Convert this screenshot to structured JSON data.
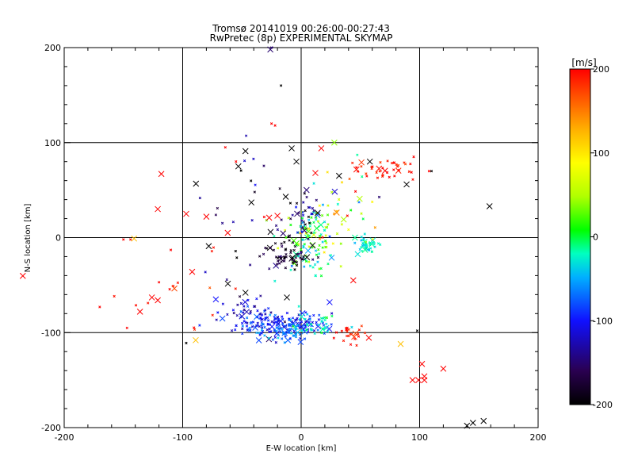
{
  "chart_data": {
    "type": "scatter",
    "title": "Tromsø 20141019 00:26:00-00:27:43",
    "subtitle": "RwPretec (8p) EXPERIMENTAL SKYMAP",
    "xlabel": "E-W location [km]",
    "ylabel": "N-S location [km]",
    "xlim": [
      -200,
      200
    ],
    "ylim": [
      -200,
      200
    ],
    "xticks": [
      "-200",
      "-100",
      "0",
      "100",
      "200"
    ],
    "yticks": [
      "-200",
      "-100",
      "0",
      "100",
      "200"
    ],
    "grid_lines": [
      -100,
      0,
      100
    ],
    "colorbar": {
      "label": "[m/s]",
      "range": [
        -200,
        200
      ],
      "ticks": [
        "-200",
        "-100",
        "0",
        "100",
        "200"
      ],
      "colormap": [
        "#000000",
        "#2a0050",
        "#1010ff",
        "#00b0ff",
        "#00ffc0",
        "#00ff00",
        "#b0ff00",
        "#ffff00",
        "#ffb000",
        "#ff5000",
        "#ff0000"
      ]
    },
    "markers": {
      "cross": "detections with large markers",
      "dot": "detections with small markers"
    },
    "clusters": [
      {
        "cx": -15,
        "cy": -92,
        "sx": 20,
        "sy": 7,
        "n": 170,
        "v": -95,
        "dv": 20
      },
      {
        "cx": -45,
        "cy": -80,
        "sx": 12,
        "sy": 8,
        "n": 40,
        "v": -120,
        "dv": 20
      },
      {
        "cx": -15,
        "cy": -100,
        "sx": 10,
        "sy": 5,
        "n": 30,
        "v": -55,
        "dv": 15
      },
      {
        "cx": 10,
        "cy": -92,
        "sx": 10,
        "sy": 6,
        "n": 30,
        "v": -25,
        "dv": 20
      },
      {
        "cx": 5,
        "cy": 0,
        "sx": 12,
        "sy": 18,
        "n": 110,
        "v": 10,
        "dv": 40
      },
      {
        "cx": -10,
        "cy": -20,
        "sx": 12,
        "sy": 8,
        "n": 60,
        "v": -180,
        "dv": 20
      },
      {
        "cx": 0,
        "cy": 25,
        "sx": 8,
        "sy": 14,
        "n": 40,
        "v": -150,
        "dv": 40
      },
      {
        "cx": 55,
        "cy": -8,
        "sx": 5,
        "sy": 5,
        "n": 40,
        "v": -35,
        "dv": 12
      },
      {
        "cx": 70,
        "cy": 72,
        "sx": 12,
        "sy": 5,
        "n": 40,
        "v": 190,
        "dv": 10
      },
      {
        "cx": 40,
        "cy": -100,
        "sx": 8,
        "sy": 6,
        "n": 25,
        "v": 190,
        "dv": 10
      },
      {
        "cx": 35,
        "cy": 30,
        "sx": 15,
        "sy": 25,
        "n": 35,
        "v": 60,
        "dv": 80
      },
      {
        "cx": -50,
        "cy": 40,
        "sx": 20,
        "sy": 40,
        "n": 25,
        "v": -160,
        "dv": 40
      },
      {
        "cx": -100,
        "cy": -60,
        "sx": 45,
        "sy": 50,
        "n": 18,
        "v": 190,
        "dv": 10
      }
    ],
    "large_crosses": [
      [
        -118,
        67,
        200
      ],
      [
        -121,
        30,
        200
      ],
      [
        -97,
        25,
        200
      ],
      [
        -80,
        22,
        200
      ],
      [
        -62,
        5,
        200
      ],
      [
        -92,
        -36,
        200
      ],
      [
        -78,
        -9,
        -200
      ],
      [
        -47,
        91,
        -200
      ],
      [
        -53,
        75,
        -200
      ],
      [
        -42,
        37,
        -200
      ],
      [
        -13,
        43,
        -200
      ],
      [
        -8,
        94,
        -200
      ],
      [
        -4,
        80,
        -200
      ],
      [
        14,
        26,
        -200
      ],
      [
        32,
        65,
        -200
      ],
      [
        58,
        80,
        -200
      ],
      [
        89,
        56,
        -200
      ],
      [
        159,
        33,
        -200
      ],
      [
        -47,
        -58,
        -200
      ],
      [
        -12,
        -63,
        -200
      ],
      [
        -27,
        21,
        200
      ],
      [
        -20,
        23,
        200
      ],
      [
        17,
        94,
        200
      ],
      [
        12,
        68,
        200
      ],
      [
        44,
        -45,
        200
      ],
      [
        -72,
        -65,
        -100
      ],
      [
        24,
        -68,
        -100
      ],
      [
        -126,
        -63,
        200
      ],
      [
        -121,
        -66,
        200
      ],
      [
        -136,
        -78,
        200
      ],
      [
        -141,
        -1,
        120
      ],
      [
        -89,
        -108,
        120
      ],
      [
        84,
        -112,
        120
      ],
      [
        28,
        100,
        40
      ],
      [
        54,
        -13,
        -10
      ],
      [
        99,
        -150,
        200
      ],
      [
        104,
        -146,
        200
      ],
      [
        104,
        -150,
        200
      ],
      [
        102,
        -133,
        200
      ],
      [
        94,
        -150,
        200
      ],
      [
        120,
        -138,
        200
      ],
      [
        140,
        -198,
        -200
      ],
      [
        145,
        -195,
        -200
      ],
      [
        154,
        -193,
        -200
      ],
      [
        -26,
        198,
        -150
      ]
    ],
    "sparse_dots": [
      [
        -170,
        -73,
        200
      ],
      [
        -150,
        -2,
        200
      ],
      [
        -144,
        -2,
        200
      ],
      [
        -110,
        -13,
        200
      ],
      [
        -120,
        -47,
        200
      ],
      [
        -64,
        95,
        200
      ],
      [
        -55,
        80,
        200
      ],
      [
        -25,
        120,
        200
      ],
      [
        -17,
        160,
        -200
      ],
      [
        -25,
        200,
        -150
      ],
      [
        110,
        70,
        -200
      ],
      [
        95,
        85,
        200
      ],
      [
        108,
        70,
        200
      ],
      [
        -97,
        -111,
        -200
      ],
      [
        98,
        -98,
        -200
      ],
      [
        -22,
        118,
        200
      ]
    ]
  }
}
